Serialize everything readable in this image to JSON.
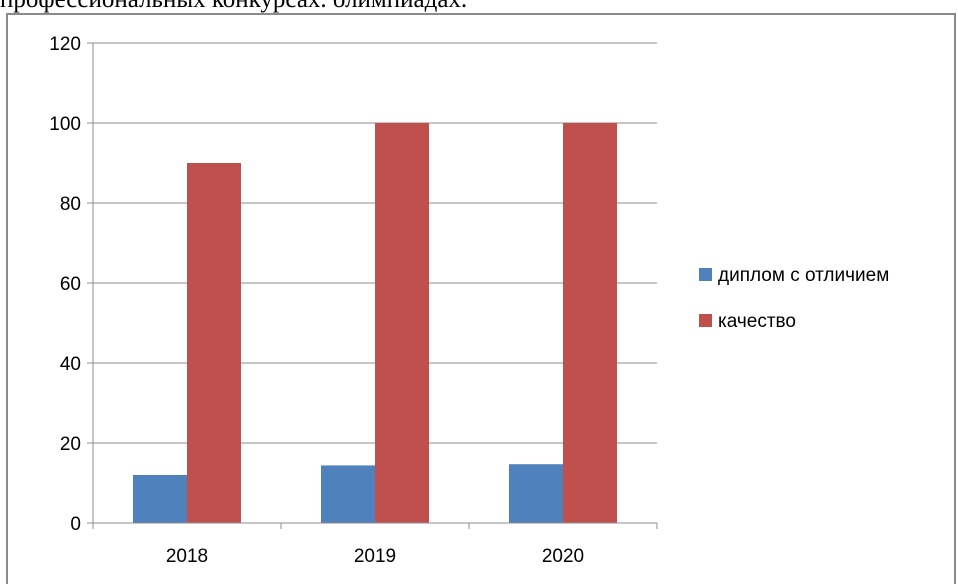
{
  "page": {
    "text": "профессиональных конкурсах. олимпиадах."
  },
  "chart_data": {
    "type": "bar",
    "categories": [
      "2018",
      "2019",
      "2020"
    ],
    "series": [
      {
        "name": "диплом с отличием",
        "values": [
          12,
          14.4,
          14.7
        ],
        "color": "#4f81bd"
      },
      {
        "name": "качество",
        "values": [
          90,
          100,
          100
        ],
        "color": "#c0504d"
      }
    ],
    "ylim": [
      0,
      120
    ],
    "yticks": [
      0,
      20,
      40,
      60,
      80,
      100,
      120
    ],
    "grid": true,
    "legend": "right",
    "title": "",
    "xlabel": "",
    "ylabel": ""
  }
}
